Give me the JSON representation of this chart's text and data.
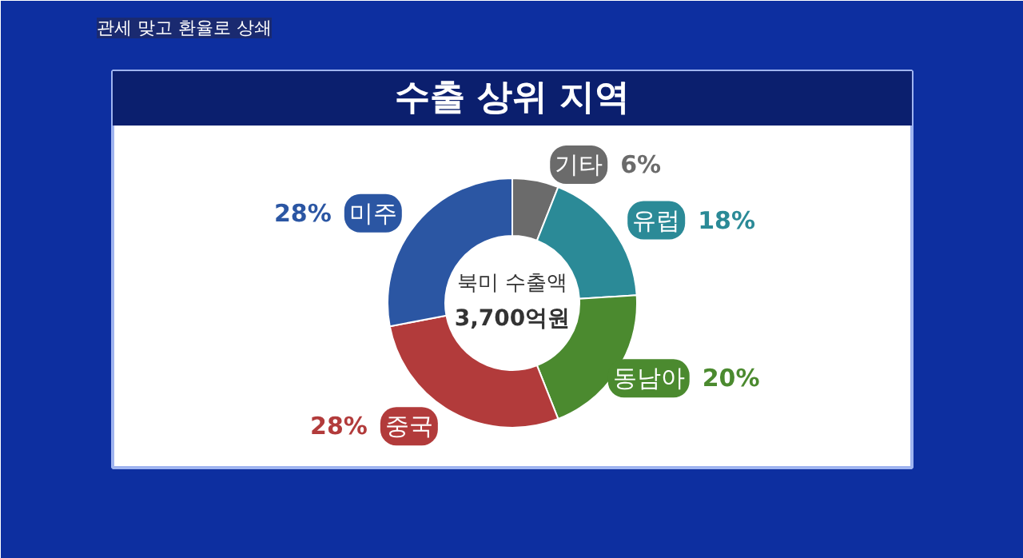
{
  "chart_data": {
    "type": "donut",
    "title": "수출 상위 지역",
    "categories": [
      "기타",
      "유럽",
      "동남아",
      "중국",
      "미주"
    ],
    "values": [
      6,
      18,
      20,
      28,
      28
    ],
    "colors": [
      "#6b6b6b",
      "#2b8a97",
      "#4b8a2f",
      "#b23b3b",
      "#2b56a3"
    ],
    "value_labels": [
      "6%",
      "18%",
      "20%",
      "28%",
      "28%"
    ],
    "annotations": [
      "관세 맞고 환율로 상쇄",
      "북미 수출액",
      "3,700억원"
    ]
  }
}
